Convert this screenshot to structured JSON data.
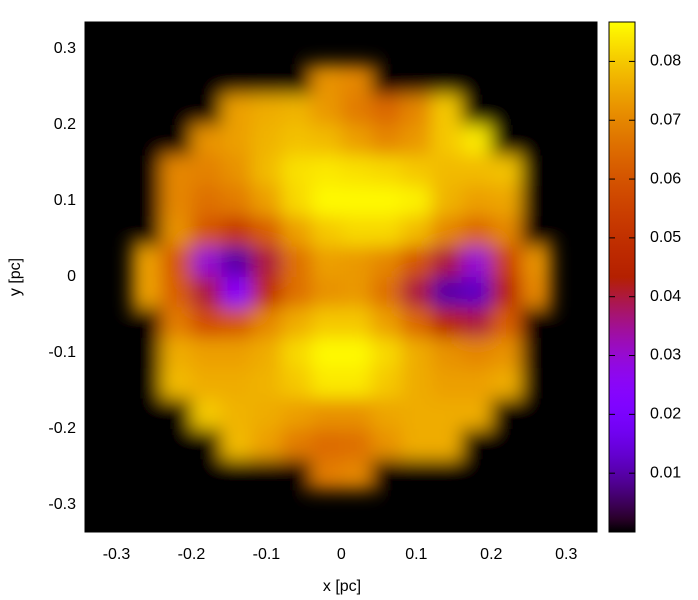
{
  "chart_data": {
    "type": "heatmap",
    "xlabel": "x [pc]",
    "ylabel": "y [pc]",
    "x": [
      -0.26,
      -0.22,
      -0.18,
      -0.14,
      -0.1,
      -0.06,
      -0.02,
      0.02,
      0.06,
      0.1,
      0.14,
      0.18,
      0.22,
      0.26
    ],
    "y": [
      0.26,
      0.22,
      0.18,
      0.14,
      0.1,
      0.06,
      0.02,
      -0.02,
      -0.06,
      -0.1,
      -0.14,
      -0.18,
      -0.22,
      -0.26
    ],
    "z": [
      [
        0,
        0,
        0,
        0,
        0,
        0,
        0.072,
        0.07,
        0,
        0,
        0,
        0,
        0,
        0
      ],
      [
        0,
        0,
        0,
        0.074,
        0.076,
        0.077,
        0.073,
        0.068,
        0.064,
        0.07,
        0.08,
        0,
        0,
        0
      ],
      [
        0,
        0,
        0.072,
        0.074,
        0.077,
        0.079,
        0.078,
        0.074,
        0.07,
        0.073,
        0.08,
        0.084,
        0,
        0
      ],
      [
        0,
        0.07,
        0.069,
        0.072,
        0.078,
        0.083,
        0.084,
        0.083,
        0.082,
        0.08,
        0.078,
        0.078,
        0.079,
        0
      ],
      [
        0,
        0.07,
        0.066,
        0.068,
        0.074,
        0.082,
        0.086,
        0.086,
        0.086,
        0.085,
        0.077,
        0.074,
        0.075,
        0
      ],
      [
        0,
        0.072,
        0.06,
        0.052,
        0.062,
        0.074,
        0.08,
        0.082,
        0.082,
        0.078,
        0.07,
        0.064,
        0.07,
        0
      ],
      [
        0.074,
        0.06,
        0.03,
        0.01,
        0.04,
        0.066,
        0.074,
        0.073,
        0.07,
        0.06,
        0.04,
        0.03,
        0.055,
        0.072
      ],
      [
        0.074,
        0.062,
        0.04,
        0.025,
        0.048,
        0.066,
        0.072,
        0.073,
        0.066,
        0.04,
        0.01,
        0.012,
        0.045,
        0.07
      ],
      [
        0,
        0.068,
        0.058,
        0.06,
        0.07,
        0.076,
        0.08,
        0.08,
        0.074,
        0.064,
        0.045,
        0.04,
        0.062,
        0
      ],
      [
        0,
        0.076,
        0.074,
        0.074,
        0.076,
        0.082,
        0.086,
        0.086,
        0.082,
        0.076,
        0.072,
        0.07,
        0.072,
        0
      ],
      [
        0,
        0.078,
        0.076,
        0.076,
        0.077,
        0.08,
        0.084,
        0.084,
        0.08,
        0.076,
        0.074,
        0.074,
        0.076,
        0
      ],
      [
        0,
        0,
        0.08,
        0.077,
        0.076,
        0.074,
        0.072,
        0.072,
        0.075,
        0.076,
        0.076,
        0.076,
        0,
        0
      ],
      [
        0,
        0,
        0,
        0.078,
        0.074,
        0.068,
        0.065,
        0.066,
        0.072,
        0.076,
        0.076,
        0,
        0,
        0
      ],
      [
        0,
        0,
        0,
        0,
        0,
        0,
        0.068,
        0.07,
        0,
        0,
        0,
        0,
        0,
        0
      ]
    ],
    "xlim": [
      -0.342,
      0.341
    ],
    "ylim": [
      -0.3355,
      0.3355
    ],
    "xticks": [
      -0.3,
      -0.2,
      -0.1,
      0,
      0.1,
      0.2,
      0.3
    ],
    "yticks": [
      -0.3,
      -0.2,
      -0.1,
      0,
      0.1,
      0.2,
      0.3
    ],
    "colorbar": {
      "lim": [
        0,
        0.0867
      ],
      "ticks": [
        0.01,
        0.02,
        0.03,
        0.04,
        0.05,
        0.06,
        0.07,
        0.08
      ]
    },
    "palette": "gnuplot"
  }
}
